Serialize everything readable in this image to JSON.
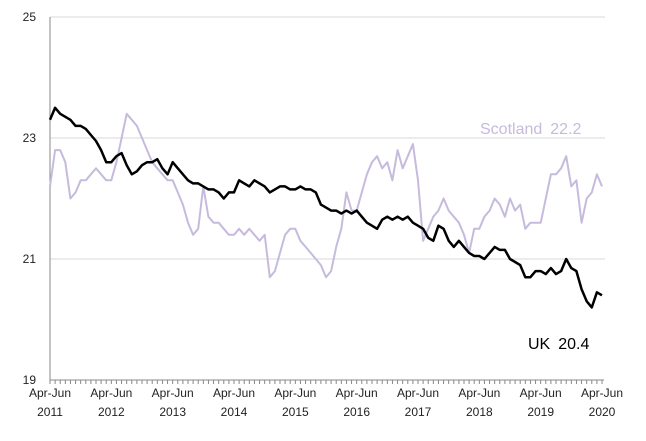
{
  "chart_data": {
    "type": "line",
    "categories": [
      "Apr-Jun 2011",
      null,
      null,
      null,
      null,
      null,
      null,
      null,
      null,
      null,
      null,
      null,
      "Apr-Jun 2012",
      null,
      null,
      null,
      null,
      null,
      null,
      null,
      null,
      null,
      null,
      null,
      "Apr-Jun 2013",
      null,
      null,
      null,
      null,
      null,
      null,
      null,
      null,
      null,
      null,
      null,
      "Apr-Jun 2014",
      null,
      null,
      null,
      null,
      null,
      null,
      null,
      null,
      null,
      null,
      null,
      "Apr-Jun 2015",
      null,
      null,
      null,
      null,
      null,
      null,
      null,
      null,
      null,
      null,
      null,
      "Apr-Jun 2016",
      null,
      null,
      null,
      null,
      null,
      null,
      null,
      null,
      null,
      null,
      null,
      "Apr-Jun 2017",
      null,
      null,
      null,
      null,
      null,
      null,
      null,
      null,
      null,
      null,
      null,
      "Apr-Jun 2018",
      null,
      null,
      null,
      null,
      null,
      null,
      null,
      null,
      null,
      null,
      null,
      "Apr-Jun 2019",
      null,
      null,
      null,
      null,
      null,
      null,
      null,
      null,
      null,
      null,
      null,
      "Apr-Jun 2020"
    ],
    "series": [
      {
        "name": "Scotland",
        "color": "#c6bbdd",
        "values": [
          22.2,
          22.8,
          22.8,
          22.6,
          22.0,
          22.1,
          22.3,
          22.3,
          22.4,
          22.5,
          22.4,
          22.3,
          22.3,
          22.6,
          23.0,
          23.4,
          23.3,
          23.2,
          23.0,
          22.8,
          22.6,
          22.5,
          22.4,
          22.3,
          22.3,
          22.1,
          21.9,
          21.6,
          21.4,
          21.5,
          22.2,
          21.7,
          21.6,
          21.6,
          21.5,
          21.4,
          21.4,
          21.5,
          21.4,
          21.5,
          21.4,
          21.3,
          21.4,
          20.7,
          20.8,
          21.1,
          21.4,
          21.5,
          21.5,
          21.3,
          21.2,
          21.1,
          21.0,
          20.9,
          20.7,
          20.8,
          21.2,
          21.5,
          22.1,
          21.8,
          21.8,
          22.1,
          22.4,
          22.6,
          22.7,
          22.5,
          22.6,
          22.3,
          22.8,
          22.5,
          22.7,
          22.9,
          22.3,
          21.3,
          21.5,
          21.7,
          21.8,
          22.0,
          21.8,
          21.7,
          21.6,
          21.4,
          21.1,
          21.5,
          21.5,
          21.7,
          21.8,
          22.0,
          21.9,
          21.7,
          22.0,
          21.8,
          21.9,
          21.5,
          21.6,
          21.6,
          21.6,
          22.0,
          22.4,
          22.4,
          22.5,
          22.7,
          22.2,
          22.3,
          21.6,
          22.0,
          22.1,
          22.4,
          22.2
        ]
      },
      {
        "name": "UK",
        "color": "#000000",
        "values": [
          23.3,
          23.5,
          23.4,
          23.35,
          23.3,
          23.2,
          23.2,
          23.15,
          23.05,
          22.95,
          22.8,
          22.6,
          22.6,
          22.7,
          22.75,
          22.55,
          22.4,
          22.45,
          22.55,
          22.6,
          22.6,
          22.65,
          22.5,
          22.4,
          22.6,
          22.5,
          22.4,
          22.3,
          22.25,
          22.25,
          22.2,
          22.15,
          22.15,
          22.1,
          22.0,
          22.1,
          22.1,
          22.3,
          22.25,
          22.2,
          22.3,
          22.25,
          22.2,
          22.1,
          22.15,
          22.2,
          22.2,
          22.15,
          22.15,
          22.2,
          22.15,
          22.15,
          22.1,
          21.9,
          21.85,
          21.8,
          21.8,
          21.75,
          21.8,
          21.75,
          21.8,
          21.7,
          21.6,
          21.55,
          21.5,
          21.65,
          21.7,
          21.65,
          21.7,
          21.65,
          21.7,
          21.6,
          21.55,
          21.5,
          21.35,
          21.3,
          21.55,
          21.5,
          21.3,
          21.2,
          21.3,
          21.2,
          21.1,
          21.05,
          21.05,
          21.0,
          21.1,
          21.2,
          21.15,
          21.15,
          21.0,
          20.95,
          20.9,
          20.7,
          20.7,
          20.8,
          20.8,
          20.75,
          20.85,
          20.75,
          20.8,
          21.0,
          20.85,
          20.8,
          20.5,
          20.3,
          20.2,
          20.45,
          20.4
        ]
      }
    ],
    "ylim": [
      19,
      25
    ],
    "yticks": [
      19,
      21,
      23,
      25
    ],
    "grid": true
  }
}
